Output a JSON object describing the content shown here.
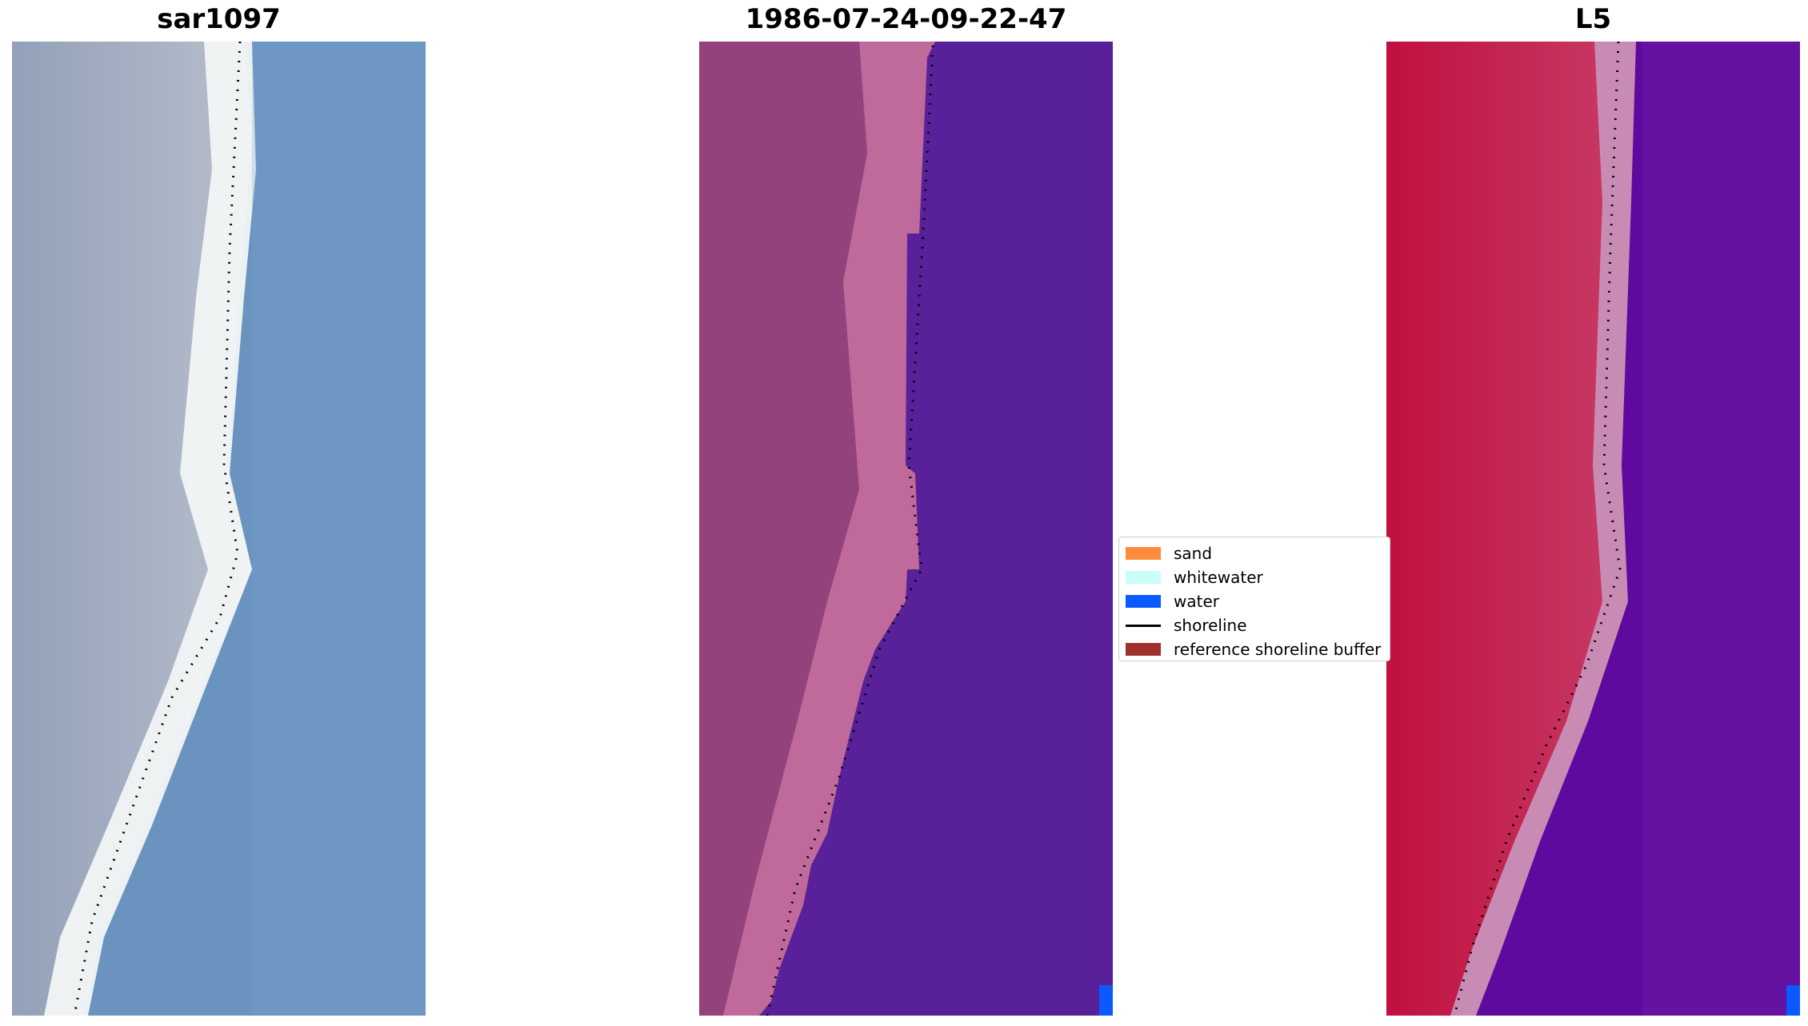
{
  "panels": [
    {
      "title": "sar1097"
    },
    {
      "title": "1986-07-24-09-22-47"
    },
    {
      "title": "L5"
    }
  ],
  "legend": {
    "items": [
      {
        "label": "sand",
        "color": "#ff8c3c",
        "kind": "patch"
      },
      {
        "label": "whitewater",
        "color": "#c8fff8",
        "kind": "patch"
      },
      {
        "label": "water",
        "color": "#0a5aff",
        "kind": "patch"
      },
      {
        "label": "shoreline",
        "color": "#000000",
        "kind": "line"
      },
      {
        "label": "reference shoreline buffer",
        "color": "#a0302e",
        "kind": "patch"
      }
    ]
  },
  "colors": {
    "rgb_land": "#9aa6bc",
    "rgb_beach": "#f4f6f6",
    "rgb_water": "#6a93bf",
    "class_land": "#8f3e78",
    "class_beach": "#bf6a9a",
    "class_water": "#582199",
    "index_land": "#c21041",
    "index_beach": "#c88cb4",
    "index_water": "#5e0a9e",
    "water_pixel": "#0a5aff"
  }
}
